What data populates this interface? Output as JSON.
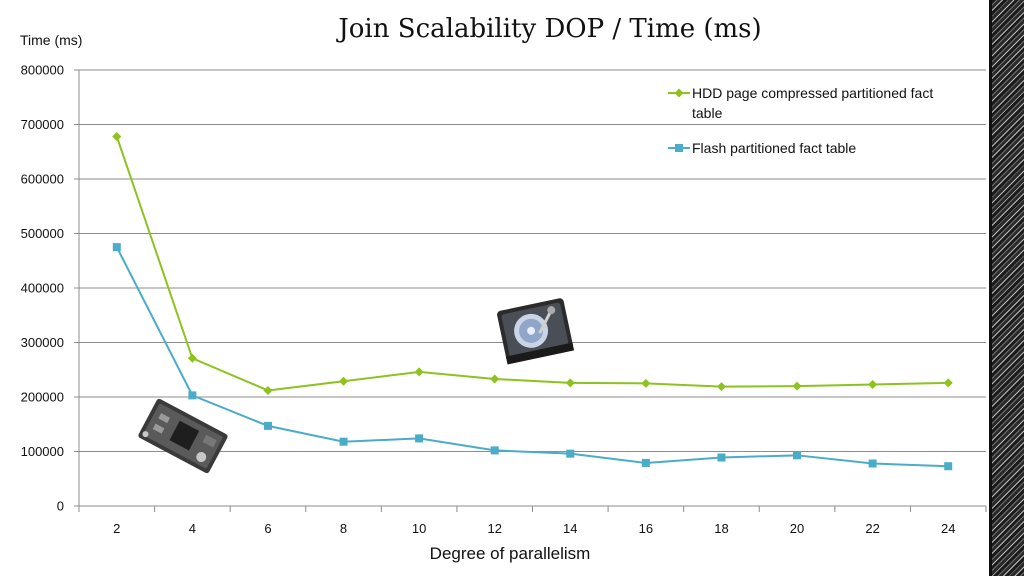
{
  "chart_data": {
    "type": "line",
    "title": "Join Scalability DOP  /  Time (ms)",
    "ylabel": "Time (ms)",
    "xlabel": "Degree of parallelism",
    "categories": [
      "2",
      "4",
      "6",
      "8",
      "10",
      "12",
      "14",
      "16",
      "18",
      "20",
      "22",
      "24"
    ],
    "ylim": [
      0,
      800000
    ],
    "yticks": [
      "0",
      "100000",
      "200000",
      "300000",
      "400000",
      "500000",
      "600000",
      "700000",
      "800000"
    ],
    "grid": true,
    "legend_position": "top-right",
    "series": [
      {
        "name": "HDD page compressed partitioned fact table",
        "legend_lines": [
          "HDD page compressed partitioned fact",
          "table"
        ],
        "color": "#8dc21f",
        "marker": "diamond",
        "values": [
          678000,
          271000,
          212000,
          229000,
          246000,
          233000,
          226000,
          225000,
          219000,
          220000,
          223000,
          226000
        ]
      },
      {
        "name": "Flash partitioned fact table",
        "legend_lines": [
          "Flash partitioned fact table"
        ],
        "color": "#4aacc6",
        "marker": "square",
        "values": [
          475000,
          203000,
          147000,
          118000,
          124000,
          102000,
          96000,
          79000,
          89000,
          93000,
          78000,
          73000
        ]
      }
    ]
  },
  "images": {
    "hdd": "hard-disk-drive-icon",
    "flash": "flash-ssd-board-icon"
  }
}
